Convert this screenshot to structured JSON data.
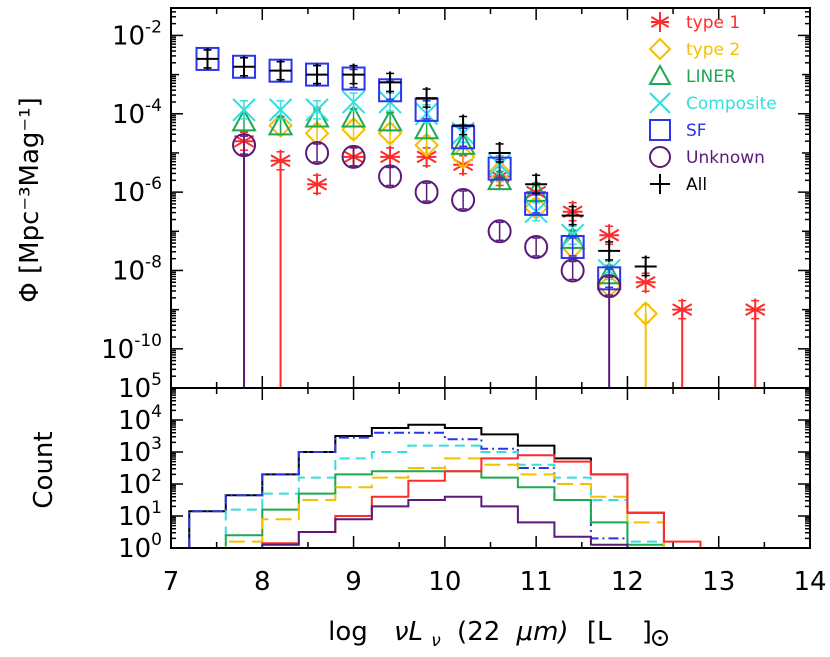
{
  "chart_data": [
    {
      "type": "scatter",
      "panel": "top",
      "ylabel": "Φ [Mpc⁻³Mag⁻¹]",
      "yscale": "log",
      "xlim": [
        7,
        14
      ],
      "ylim_log10": [
        -11,
        -1.3
      ],
      "y_ticks": [
        {
          "log": -2,
          "base": "10",
          "exp": "-2"
        },
        {
          "log": -4,
          "base": "10",
          "exp": "-4"
        },
        {
          "log": -6,
          "base": "10",
          "exp": "-6"
        },
        {
          "log": -8,
          "base": "10",
          "exp": "-8"
        },
        {
          "log": -10,
          "base": "10",
          "exp": "-10"
        }
      ],
      "legend_position": "top-right",
      "series": [
        {
          "name": "type 1",
          "color": "#ff2a2a",
          "marker": "asterisk",
          "x": [
            7.8,
            8.2,
            8.6,
            9.0,
            9.4,
            9.8,
            10.2,
            10.6,
            11.0,
            11.4,
            11.8,
            12.2,
            12.6,
            13.4
          ],
          "log_phi": [
            -4.7,
            -5.2,
            -5.8,
            -5.1,
            -5.1,
            -5.1,
            -5.3,
            -5.6,
            -6.0,
            -6.5,
            -7.1,
            -8.3,
            -9.0,
            -9.0
          ]
        },
        {
          "name": "type 2",
          "color": "#f5c000",
          "marker": "diamond",
          "x": [
            8.2,
            8.6,
            9.0,
            9.4,
            9.8,
            10.2,
            10.6,
            11.0,
            11.4,
            11.8,
            12.2
          ],
          "log_phi": [
            -4.3,
            -4.5,
            -4.4,
            -4.5,
            -4.8,
            -5.1,
            -5.5,
            -6.4,
            -7.4,
            -8.4,
            -9.1
          ]
        },
        {
          "name": "LINER",
          "color": "#1fa84f",
          "marker": "triangle",
          "x": [
            7.8,
            8.2,
            8.6,
            9.0,
            9.4,
            9.8,
            10.2,
            10.6,
            11.0,
            11.4,
            11.8
          ],
          "log_phi": [
            -4.2,
            -4.3,
            -4.1,
            -4.1,
            -4.2,
            -4.4,
            -4.8,
            -5.7,
            -6.0,
            -7.2,
            -8.1
          ]
        },
        {
          "name": "Composite",
          "color": "#33dede",
          "marker": "x",
          "x": [
            7.8,
            8.2,
            8.6,
            9.0,
            9.4,
            9.8,
            10.2,
            10.6,
            11.0,
            11.4,
            11.8
          ],
          "log_phi": [
            -3.9,
            -3.9,
            -3.9,
            -3.7,
            -3.7,
            -4.0,
            -4.5,
            -5.3,
            -6.5,
            -7.1,
            -8.0
          ]
        },
        {
          "name": "SF",
          "color": "#2a36ee",
          "marker": "square",
          "x": [
            7.4,
            7.8,
            8.2,
            8.6,
            9.0,
            9.4,
            9.8,
            10.2,
            10.6,
            11.0,
            11.4,
            11.8
          ],
          "log_phi": [
            -2.6,
            -2.8,
            -2.9,
            -3.0,
            -3.1,
            -3.4,
            -3.9,
            -4.6,
            -5.4,
            -6.3,
            -7.4,
            -8.2
          ]
        },
        {
          "name": "Unknown",
          "color": "#5a1a7a",
          "marker": "circle",
          "x": [
            7.8,
            8.6,
            9.0,
            9.4,
            9.8,
            10.2,
            10.6,
            11.0,
            11.4,
            11.8
          ],
          "log_phi": [
            -4.8,
            -5.0,
            -5.1,
            -5.6,
            -6.0,
            -6.2,
            -7.0,
            -7.4,
            -8.0,
            -8.4
          ]
        },
        {
          "name": "All",
          "color": "#000000",
          "marker": "plus",
          "x": [
            7.4,
            7.8,
            8.2,
            8.6,
            9.0,
            9.4,
            9.8,
            10.2,
            10.6,
            11.0,
            11.4,
            11.8,
            12.2
          ],
          "log_phi": [
            -2.6,
            -2.8,
            -2.9,
            -3.0,
            -3.0,
            -3.2,
            -3.6,
            -4.3,
            -5.0,
            -5.8,
            -6.6,
            -7.5,
            -7.9
          ]
        }
      ],
      "drop_lines": [
        {
          "series": "Unknown",
          "x": 7.8,
          "from_log": -4.8
        },
        {
          "series": "type 1",
          "x": 8.2,
          "from_log": -5.2
        },
        {
          "series": "Unknown",
          "x": 11.8,
          "from_log": -8.4
        },
        {
          "series": "type 2",
          "x": 12.2,
          "from_log": -9.1
        },
        {
          "series": "type 1",
          "x": 12.6,
          "from_log": -9.0
        },
        {
          "series": "type 1",
          "x": 13.4,
          "from_log": -9.0
        }
      ]
    },
    {
      "type": "histogram",
      "panel": "bottom",
      "ylabel": "Count",
      "xlabel_parts": [
        "log",
        "νL",
        "ν",
        "(22",
        "μm)",
        "[L",
        "]"
      ],
      "yscale": "log",
      "xlim": [
        7,
        14
      ],
      "ylim_log10": [
        0,
        5
      ],
      "x_ticks": [
        "7",
        "8",
        "9",
        "10",
        "11",
        "12",
        "13",
        "14"
      ],
      "y_ticks": [
        {
          "log": 0,
          "base": "10",
          "exp": "0"
        },
        {
          "log": 1,
          "base": "10",
          "exp": "1"
        },
        {
          "log": 2,
          "base": "10",
          "exp": "2"
        },
        {
          "log": 3,
          "base": "10",
          "exp": "3"
        },
        {
          "log": 4,
          "base": "10",
          "exp": "4"
        },
        {
          "log": 5,
          "base": "10",
          "exp": "5"
        }
      ],
      "bin_edges": [
        7.2,
        7.6,
        8.0,
        8.4,
        8.8,
        9.2,
        9.6,
        10.0,
        10.4,
        10.8,
        11.2,
        11.6,
        12.0,
        12.4,
        12.8,
        13.2,
        13.6,
        14.0
      ],
      "series": [
        {
          "name": "All",
          "color": "#000000",
          "dash": "solid",
          "log_counts": [
            1.15,
            1.65,
            2.3,
            3.0,
            3.5,
            3.75,
            3.85,
            3.75,
            3.55,
            3.2,
            2.8,
            2.3,
            1.1,
            0,
            0,
            0,
            0
          ]
        },
        {
          "name": "SF",
          "color": "#2a36ee",
          "dash": "dashdot",
          "log_counts": [
            1.15,
            1.65,
            2.3,
            3.0,
            3.45,
            3.6,
            3.6,
            3.4,
            3.1,
            2.5,
            1.5,
            0.3,
            0,
            0,
            0,
            0,
            0
          ]
        },
        {
          "name": "Composite",
          "color": "#33dede",
          "dash": "dashed",
          "log_counts": [
            0,
            1.2,
            1.7,
            2.2,
            2.8,
            3.0,
            3.2,
            3.2,
            3.0,
            2.6,
            2.2,
            1.5,
            0.2,
            0,
            0,
            0,
            0
          ]
        },
        {
          "name": "LINER",
          "color": "#1fa84f",
          "dash": "solid",
          "log_counts": [
            0,
            0.4,
            1.2,
            1.7,
            2.3,
            2.4,
            2.4,
            2.4,
            2.2,
            1.9,
            1.5,
            0.8,
            0.1,
            0,
            0,
            0,
            0
          ]
        },
        {
          "name": "type 2",
          "color": "#f5c000",
          "dash": "longdash",
          "log_counts": [
            0,
            0.2,
            0.9,
            1.5,
            1.9,
            2.2,
            2.5,
            2.8,
            2.6,
            2.3,
            2.0,
            1.6,
            0.8,
            0,
            0,
            0,
            0
          ]
        },
        {
          "name": "type 1",
          "color": "#ff2a2a",
          "dash": "solid",
          "log_counts": [
            0,
            0,
            0.15,
            0.5,
            1.0,
            1.6,
            2.1,
            2.4,
            2.8,
            2.9,
            2.7,
            2.3,
            1.1,
            0.2,
            0,
            0,
            0
          ]
        },
        {
          "name": "Unknown",
          "color": "#5a1a7a",
          "dash": "solid",
          "log_counts": [
            0,
            0,
            0.1,
            0.5,
            0.9,
            1.3,
            1.5,
            1.6,
            1.3,
            0.8,
            0.35,
            0.1,
            0,
            0,
            0,
            0,
            0
          ]
        }
      ]
    }
  ]
}
